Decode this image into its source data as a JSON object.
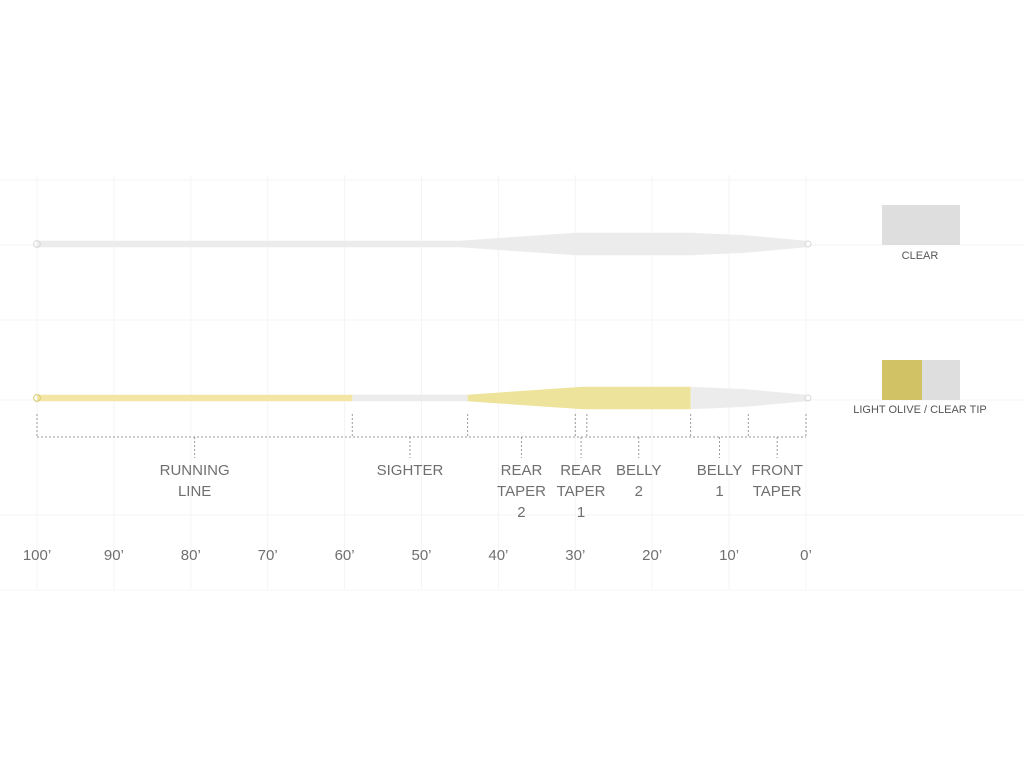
{
  "chart_data": {
    "type": "diagram",
    "axis": {
      "unit": "ft",
      "range": [
        100,
        0
      ],
      "ticks": [
        "100’",
        "90’",
        "80’",
        "70’",
        "60’",
        "50’",
        "40’",
        "30’",
        "20’",
        "10’",
        "0’"
      ]
    },
    "lines": [
      {
        "color_label": "CLEAR",
        "colors": [
          "#dedede"
        ],
        "profile": [
          {
            "ft": 100,
            "d": 1.0
          },
          {
            "ft": 45,
            "d": 1.0
          },
          {
            "ft": 30,
            "d": 3.4
          },
          {
            "ft": 15,
            "d": 3.4
          },
          {
            "ft": 8,
            "d": 2.7
          },
          {
            "ft": 0,
            "d": 1.0
          }
        ]
      },
      {
        "color_label": "LIGHT OLIVE / CLEAR TIP",
        "colors": [
          "#d2c266",
          "#dedede"
        ],
        "profile": [
          {
            "ft": 100,
            "d": 1.0
          },
          {
            "ft": 44,
            "d": 1.0
          },
          {
            "ft": 29,
            "d": 3.4
          },
          {
            "ft": 15,
            "d": 3.4
          },
          {
            "ft": 8,
            "d": 2.7
          },
          {
            "ft": 0,
            "d": 1.0
          }
        ],
        "segments": [
          {
            "from": 100,
            "to": 59,
            "color": "#f3e6a4"
          },
          {
            "from": 59,
            "to": 44,
            "color": "#ececec"
          },
          {
            "from": 44,
            "to": 15,
            "color": "#eee39a"
          },
          {
            "from": 15,
            "to": 0,
            "color": "#ececec"
          }
        ]
      }
    ],
    "sections": [
      {
        "name": [
          "RUNNING",
          "LINE"
        ],
        "from": 100,
        "to": 59
      },
      {
        "name": [
          "SIGHTER"
        ],
        "from": 59,
        "to": 44
      },
      {
        "name": [
          "REAR",
          "TAPER",
          "2"
        ],
        "from": 44,
        "to": 30
      },
      {
        "name": [
          "REAR",
          "TAPER",
          "1"
        ],
        "from": 30,
        "to": 28.5
      },
      {
        "name": [
          "BELLY",
          "2"
        ],
        "from": 28.5,
        "to": 15
      },
      {
        "name": [
          "BELLY",
          "1"
        ],
        "from": 15,
        "to": 7.5
      },
      {
        "name": [
          "FRONT",
          "TAPER"
        ],
        "from": 7.5,
        "to": 0
      }
    ]
  }
}
